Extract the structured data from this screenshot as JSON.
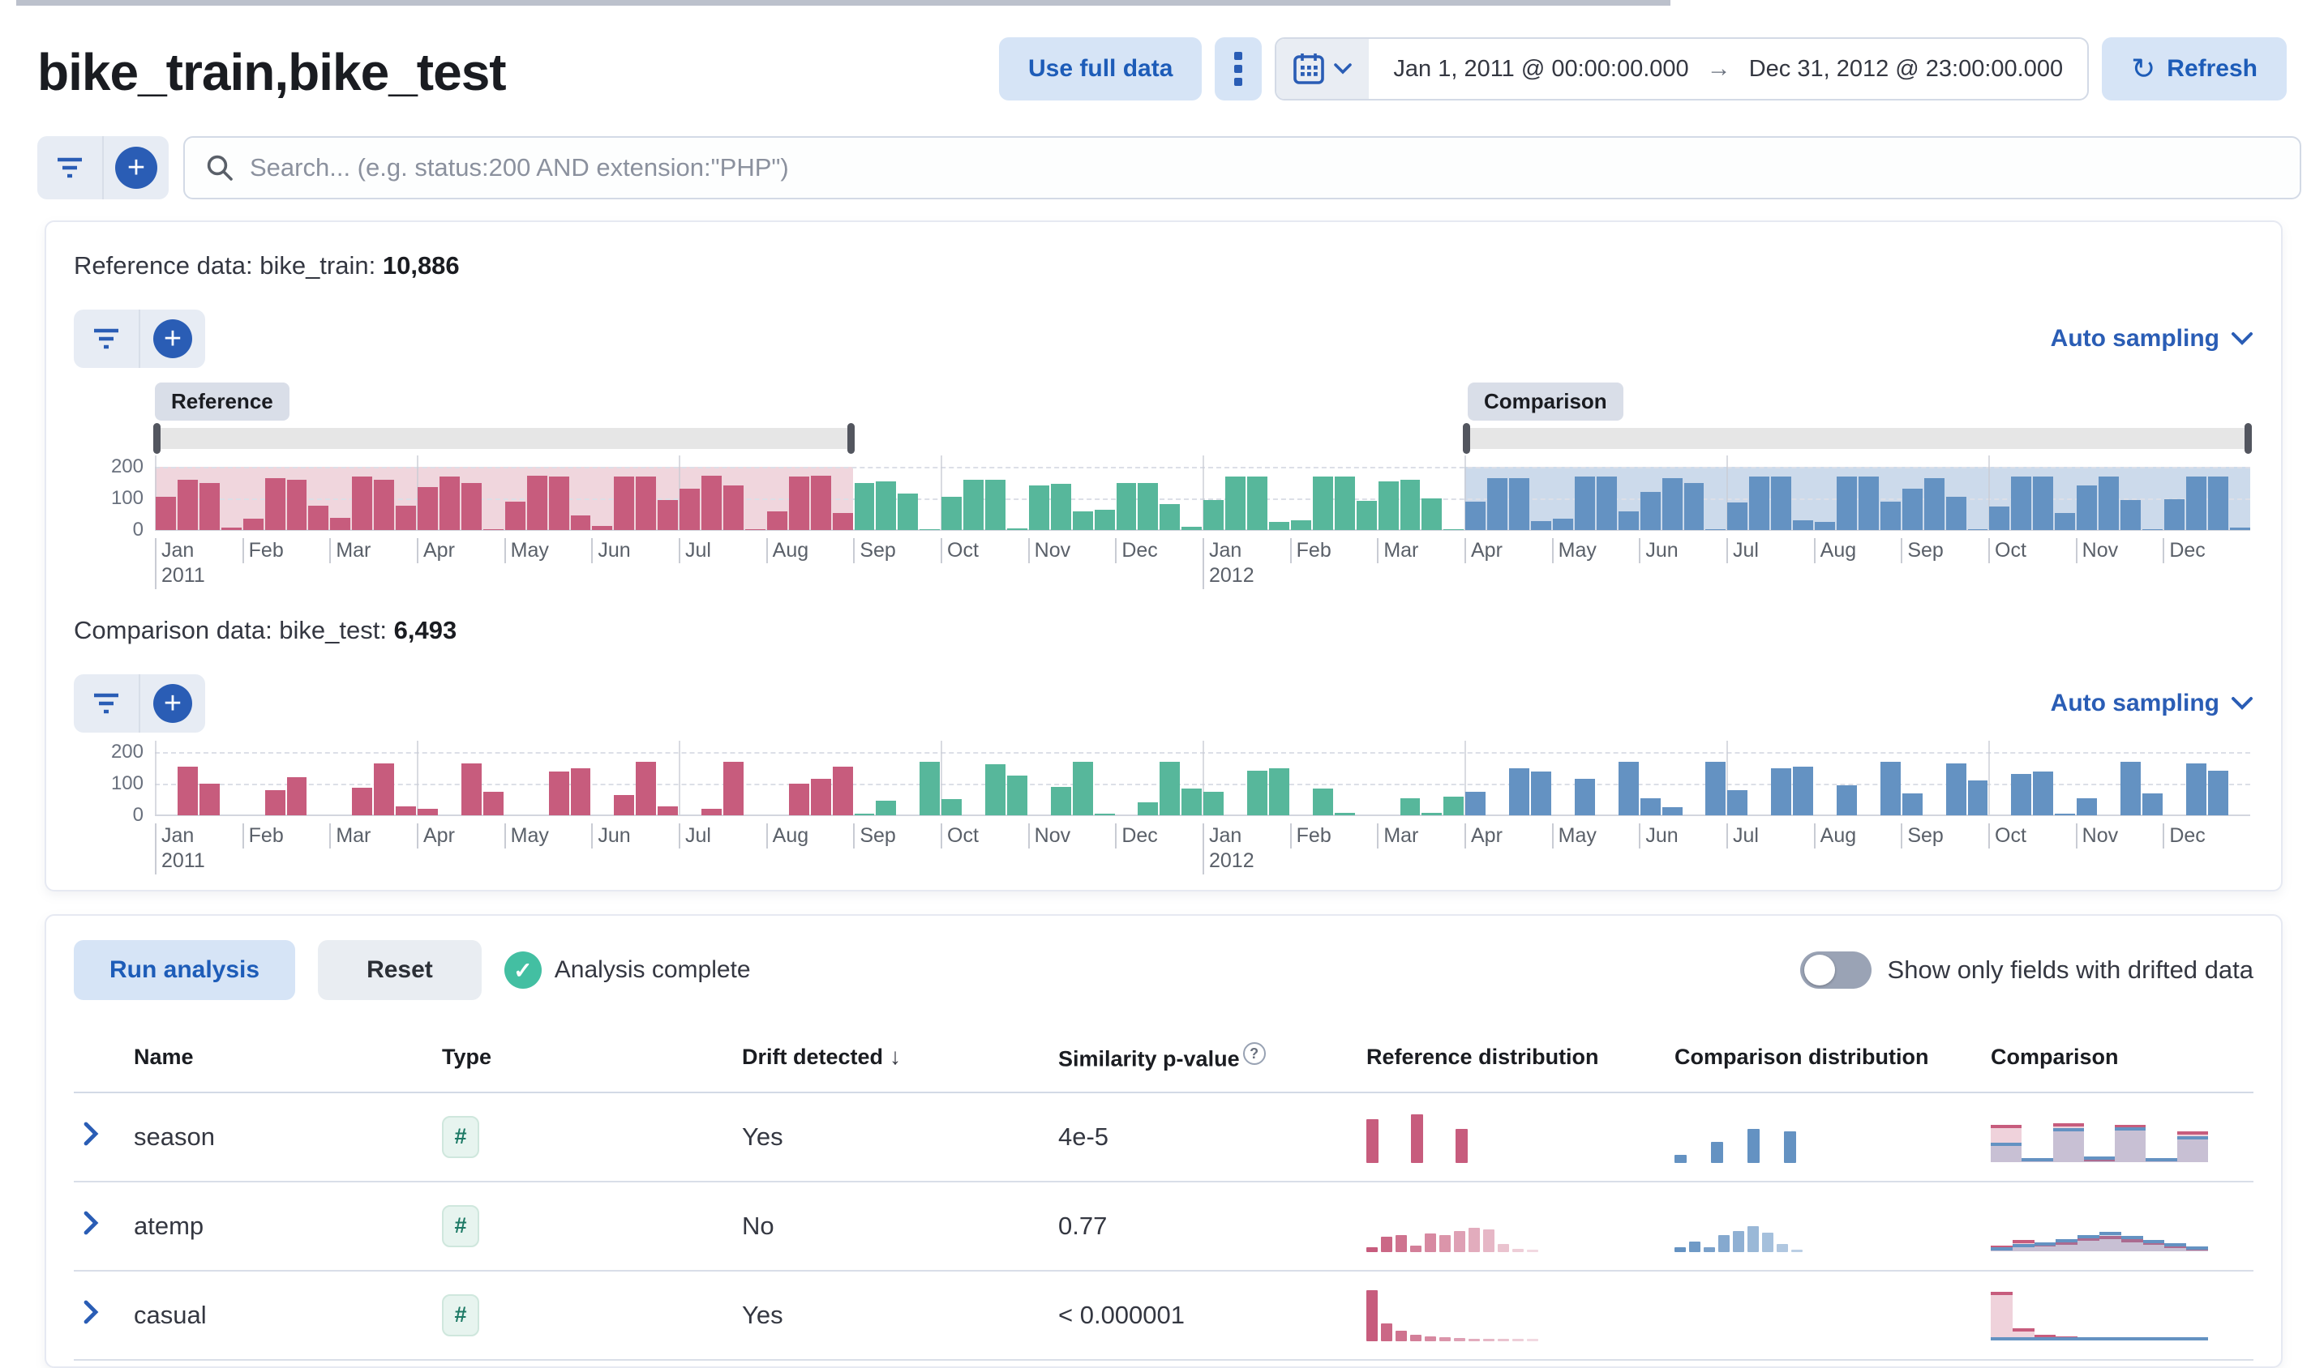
{
  "page": {
    "title": "bike_train,bike_test"
  },
  "header": {
    "use_full_data_label": "Use full data",
    "date_start": "Jan 1, 2011 @ 00:00:00.000",
    "date_arrow": "→",
    "date_end": "Dec 31, 2012 @ 23:00:00.000",
    "refresh_label": "Refresh",
    "refresh_icon": "↻"
  },
  "search": {
    "placeholder": "Search... (e.g. status:200 AND extension:\"PHP\")"
  },
  "reference_section": {
    "label": "Reference data: bike_train: ",
    "count": "10,886",
    "sampling_label": "Auto sampling",
    "reference_badge": "Reference",
    "comparison_badge": "Comparison"
  },
  "comparison_section": {
    "label": "Comparison data: bike_test: ",
    "count": "6,493",
    "sampling_label": "Auto sampling"
  },
  "analysis": {
    "run_label": "Run analysis",
    "reset_label": "Reset",
    "status_label": "Analysis complete",
    "check_glyph": "✓",
    "toggle_label": "Show only fields with drifted data"
  },
  "colors": {
    "pink_bar": "#c75c7d",
    "pink_shade": "#f0d6dd",
    "teal_bar": "#57b79b",
    "blue_bar": "#6492c2",
    "blue_shade": "#ccdaeb",
    "accent_blue": "#2a5db5"
  },
  "chart_data": [
    {
      "id": "doc_count_reference",
      "type": "bar",
      "title": "Reference data event distribution",
      "ylim": [
        0,
        200
      ],
      "yticks": [
        200,
        100,
        0
      ],
      "months": [
        "Jan",
        "Feb",
        "Mar",
        "Apr",
        "May",
        "Jun",
        "Jul",
        "Aug",
        "Sep",
        "Oct",
        "Nov",
        "Dec",
        "Jan",
        "Feb",
        "Mar",
        "Apr",
        "May",
        "Jun",
        "Jul",
        "Aug",
        "Sep",
        "Oct",
        "Nov",
        "Dec"
      ],
      "year_labels": {
        "0": "2011",
        "12": "2012"
      },
      "values": [
        105,
        160,
        150,
        8,
        35,
        165,
        158,
        78,
        38,
        168,
        160,
        78,
        135,
        170,
        148,
        2,
        90,
        172,
        170,
        45,
        12,
        170,
        170,
        95,
        130,
        172,
        140,
        2,
        60,
        170,
        172,
        55,
        150,
        155,
        115,
        2,
        105,
        160,
        160,
        5,
        140,
        145,
        60,
        65,
        150,
        150,
        82,
        10,
        95,
        168,
        168,
        25,
        30,
        168,
        170,
        92,
        155,
        160,
        100,
        2,
        90,
        165,
        165,
        28,
        35,
        168,
        168,
        60,
        120,
        165,
        148,
        2,
        88,
        168,
        168,
        30,
        25,
        168,
        168,
        90,
        130,
        165,
        105,
        3,
        75,
        168,
        168,
        55,
        140,
        168,
        95,
        2,
        98,
        168,
        168,
        8
      ],
      "segments": [
        {
          "to": 31,
          "color": "#c75c7d"
        },
        {
          "to": 59,
          "color": "#57b79b"
        },
        {
          "to": 95,
          "color": "#6492c2"
        }
      ],
      "windows": [
        {
          "from": 0,
          "to": 8,
          "color": "#f0d6dd"
        },
        {
          "from": 15,
          "to": 24,
          "color": "#ccdaeb"
        }
      ]
    },
    {
      "id": "doc_count_comparison",
      "type": "bar",
      "title": "Comparison data event distribution",
      "ylim": [
        0,
        200
      ],
      "yticks": [
        200,
        100,
        0
      ],
      "months": [
        "Jan",
        "Feb",
        "Mar",
        "Apr",
        "May",
        "Jun",
        "Jul",
        "Aug",
        "Sep",
        "Oct",
        "Nov",
        "Dec",
        "Jan",
        "Feb",
        "Mar",
        "Apr",
        "May",
        "Jun",
        "Jul",
        "Aug",
        "Sep",
        "Oct",
        "Nov",
        "Dec"
      ],
      "year_labels": {
        "0": "2011",
        "12": "2012"
      },
      "values": [
        0,
        155,
        100,
        0,
        0,
        80,
        120,
        0,
        0,
        88,
        165,
        28,
        20,
        0,
        165,
        75,
        0,
        0,
        138,
        148,
        0,
        65,
        168,
        28,
        0,
        20,
        168,
        0,
        0,
        100,
        115,
        155,
        5,
        45,
        0,
        168,
        52,
        0,
        162,
        125,
        0,
        90,
        168,
        5,
        0,
        40,
        168,
        85,
        75,
        0,
        140,
        150,
        0,
        85,
        8,
        0,
        0,
        55,
        8,
        60,
        75,
        0,
        150,
        138,
        0,
        115,
        0,
        168,
        55,
        25,
        0,
        168,
        80,
        0,
        148,
        155,
        0,
        95,
        0,
        168,
        70,
        0,
        165,
        110,
        0,
        130,
        138,
        5,
        55,
        0,
        168,
        70,
        0,
        165,
        140,
        0
      ],
      "segments": [
        {
          "to": 31,
          "color": "#c75c7d"
        },
        {
          "to": 59,
          "color": "#57b79b"
        },
        {
          "to": 95,
          "color": "#6492c2"
        }
      ],
      "windows": []
    }
  ],
  "table": {
    "columns": [
      {
        "label": "Name"
      },
      {
        "label": "Type"
      },
      {
        "label": "Drift detected",
        "sort": "↓"
      },
      {
        "label": "Similarity p-value",
        "help": "?"
      },
      {
        "label": "Reference distribution"
      },
      {
        "label": "Comparison distribution"
      },
      {
        "label": "Comparison"
      }
    ],
    "rows": [
      {
        "name": "season",
        "type_badge": "#",
        "drift": "Yes",
        "p_value": "4e-5",
        "ref_dist": {
          "values": [
            58,
            65,
            45
          ],
          "color": "#c75c7d",
          "gap": 40,
          "barw": 15
        },
        "comp_dist": {
          "values": [
            10,
            28,
            45,
            42
          ],
          "color": "#6492c2",
          "gap": 30,
          "barw": 15
        },
        "overlay": {
          "ref": [
            55,
            6,
            58,
            6,
            55,
            6,
            45
          ],
          "comp": [
            28,
            6,
            50,
            8,
            52,
            6,
            38
          ]
        }
      },
      {
        "name": "atemp",
        "type_badge": "#",
        "drift": "No",
        "p_value": "0.77",
        "ref_dist": {
          "values": [
            6,
            20,
            22,
            8,
            25,
            22,
            28,
            32,
            30,
            10,
            4,
            2
          ],
          "color": "#c75c7d",
          "gap": 4,
          "barw": 14,
          "fade": true
        },
        "comp_dist": {
          "values": [
            6,
            14,
            6,
            22,
            28,
            34,
            26,
            10,
            3
          ],
          "color": "#6492c2",
          "gap": 4,
          "barw": 14,
          "fade": true
        },
        "overlay": {
          "ref": [
            8,
            16,
            12,
            14,
            20,
            22,
            18,
            14,
            9,
            6
          ],
          "comp": [
            6,
            10,
            13,
            17,
            24,
            28,
            22,
            16,
            11,
            7
          ]
        }
      },
      {
        "name": "casual",
        "type_badge": "#",
        "drift": "Yes",
        "p_value": "< 0.000001",
        "ref_dist": {
          "values": [
            68,
            24,
            14,
            8,
            6,
            5,
            4,
            3,
            3,
            2,
            2,
            2
          ],
          "color": "#c75c7d",
          "gap": 4,
          "barw": 14,
          "fade": true
        },
        "comp_dist": {
          "values": [],
          "color": "#6492c2",
          "gap": 4,
          "barw": 14
        },
        "overlay": {
          "ref": [
            72,
            18,
            8,
            5,
            4,
            3,
            3,
            2,
            2,
            2
          ],
          "comp": [
            3,
            2,
            2,
            2,
            2,
            2,
            2,
            2,
            2,
            2
          ]
        }
      }
    ]
  }
}
